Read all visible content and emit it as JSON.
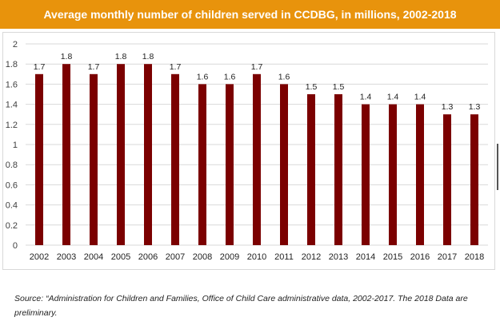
{
  "title": "Average monthly number of children served in CCDBG, in millions, 2002-2018",
  "source_note": "Source: “Administration for Children and Families, Office of Child Care administrative data, 2002-2017. The 2018 Data are preliminary.",
  "colors": {
    "title_bg": "#E8930C",
    "bar": "#7B0000",
    "grid": "#d9d9d9"
  },
  "chart_data": {
    "type": "bar",
    "title": "Average monthly number of children served in CCDBG, in millions, 2002-2018",
    "xlabel": "",
    "ylabel": "",
    "categories": [
      "2002",
      "2003",
      "2004",
      "2005",
      "2006",
      "2007",
      "2008",
      "2009",
      "2010",
      "2011",
      "2012",
      "2013",
      "2014",
      "2015",
      "2016",
      "2017",
      "2018"
    ],
    "values": [
      1.7,
      1.8,
      1.7,
      1.8,
      1.8,
      1.7,
      1.6,
      1.6,
      1.7,
      1.6,
      1.5,
      1.5,
      1.4,
      1.4,
      1.4,
      1.3,
      1.3
    ],
    "value_labels": [
      "1.7",
      "1.8",
      "1.7",
      "1.8",
      "1.8",
      "1.7",
      "1.6",
      "1.6",
      "1.7",
      "1.6",
      "1.5",
      "1.5",
      "1.4",
      "1.4",
      "1.4",
      "1.3",
      "1.3"
    ],
    "ylim": [
      0,
      2
    ],
    "yticks": [
      "0",
      "0.2",
      "0.4",
      "0.6",
      "0.8",
      "1",
      "1.2",
      "1.4",
      "1.6",
      "1.8",
      "2"
    ],
    "grid": true,
    "legend": "none"
  }
}
